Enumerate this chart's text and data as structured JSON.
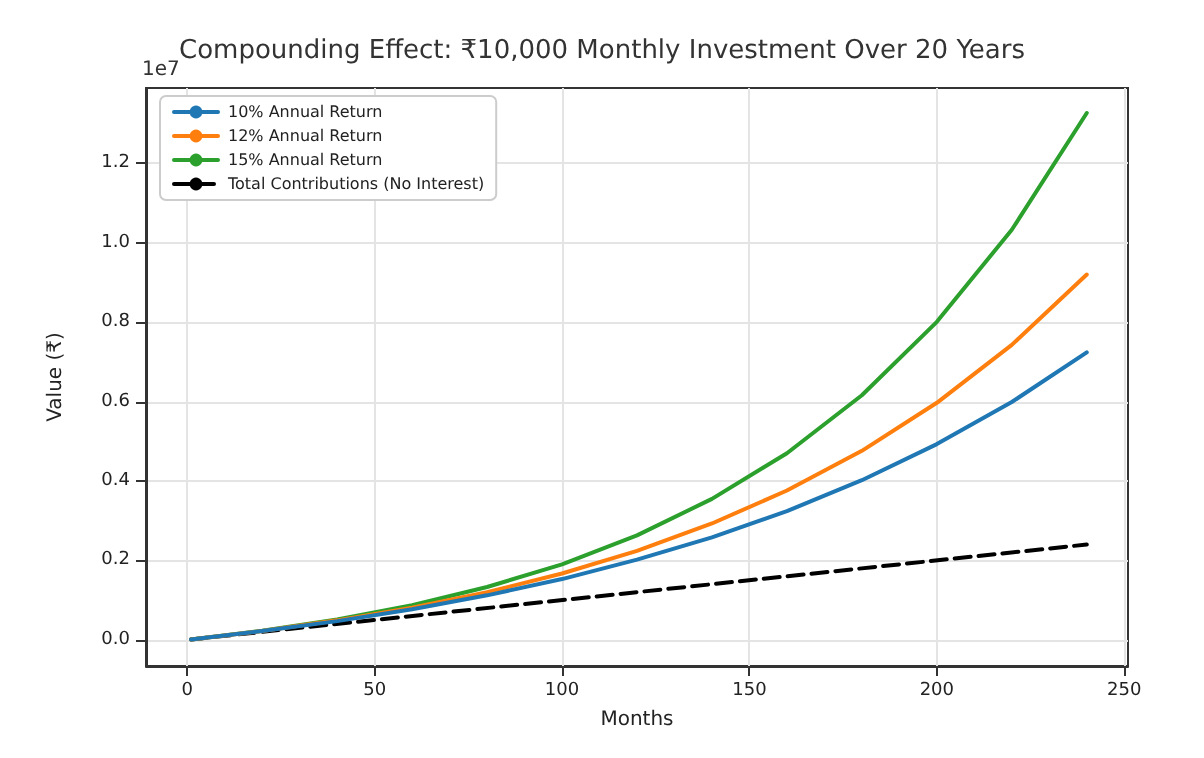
{
  "chart_data": {
    "type": "line",
    "title": "Compounding Effect: ₹10,000 Monthly Investment Over 20 Years",
    "xlabel": "Months",
    "ylabel": "Value (₹)",
    "annotations": [
      "1e7"
    ],
    "x": [
      1,
      20,
      40,
      60,
      80,
      100,
      120,
      140,
      160,
      180,
      200,
      220,
      240
    ],
    "series": [
      {
        "name": "10% Annual Return",
        "color": "#1f77b4",
        "values": [
          0.001,
          0.022,
          0.047,
          0.077,
          0.112,
          0.153,
          0.202,
          0.258,
          0.324,
          0.402,
          0.493,
          0.599,
          0.724
        ]
      },
      {
        "name": "12% Annual Return",
        "color": "#ff7f0e",
        "values": [
          0.001,
          0.022,
          0.049,
          0.081,
          0.12,
          0.167,
          0.224,
          0.293,
          0.376,
          0.476,
          0.597,
          0.743,
          0.92
        ]
      },
      {
        "name": "15% Annual Return",
        "color": "#2ca02c",
        "values": [
          0.001,
          0.023,
          0.051,
          0.087,
          0.133,
          0.19,
          0.263,
          0.355,
          0.47,
          0.616,
          0.801,
          1.033,
          1.327
        ]
      },
      {
        "name": "Total Contributions (No Interest)",
        "color": "#000000",
        "line_style": "dashed",
        "x": [
          1,
          240
        ],
        "values": [
          0.001,
          0.24
        ]
      }
    ],
    "xlim": [
      -11,
      251
    ],
    "xticks": [
      0,
      50,
      100,
      150,
      200,
      250
    ],
    "ylim": [
      -0.066,
      1.39
    ],
    "yticks": [
      {
        "value": 0,
        "label": "0.0"
      },
      {
        "value": 0.2,
        "label": "0.2"
      },
      {
        "value": 0.4,
        "label": "0.4"
      },
      {
        "value": 0.6,
        "label": "0.6"
      },
      {
        "value": 0.8,
        "label": "0.8"
      },
      {
        "value": 1.0,
        "label": "1.0"
      },
      {
        "value": 1.2,
        "label": "1.2"
      }
    ],
    "grid": true,
    "legend": "top left",
    "marker": "none",
    "line_style": "solid"
  }
}
